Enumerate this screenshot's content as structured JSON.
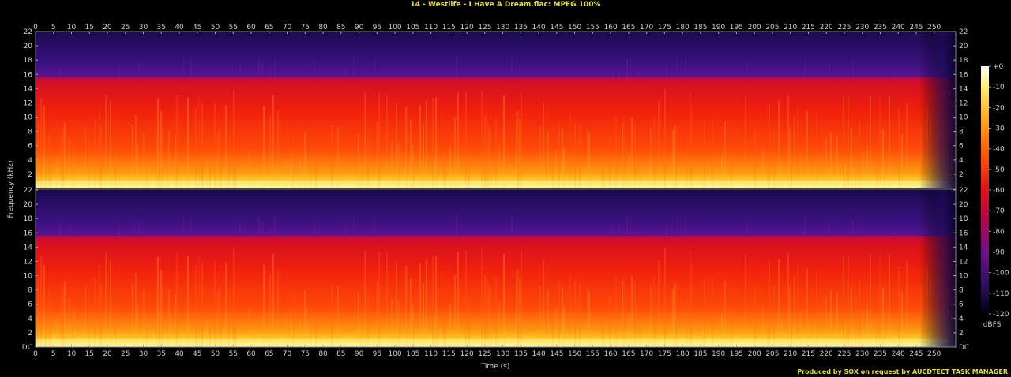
{
  "chart_data": {
    "type": "heatmap",
    "title": "14 - Westlife - I Have A Dream.flac: MPEG 100%",
    "xlabel": "Time (s)",
    "ylabel": "Frequency (kHz)",
    "x_ticks": [
      0,
      5,
      10,
      15,
      20,
      25,
      30,
      35,
      40,
      45,
      50,
      55,
      60,
      65,
      70,
      75,
      80,
      85,
      90,
      95,
      100,
      105,
      110,
      115,
      120,
      125,
      130,
      135,
      140,
      145,
      150,
      155,
      160,
      165,
      170,
      175,
      180,
      185,
      190,
      195,
      200,
      205,
      210,
      215,
      220,
      225,
      230,
      235,
      240,
      245,
      250
    ],
    "xlim": [
      0,
      256
    ],
    "y_ticks": [
      "DC",
      "2",
      "4",
      "6",
      "8",
      "10",
      "12",
      "14",
      "16",
      "18",
      "20",
      "22"
    ],
    "ylim": [
      0,
      22
    ],
    "channels": 2,
    "lowpass_cutoff_khz": 15.5,
    "fade_out_start_s": 248,
    "colorbar": {
      "label": "dBFS",
      "ticks": [
        "+0",
        "-10",
        "-20",
        "-30",
        "-40",
        "-50",
        "-60",
        "-70",
        "-80",
        "-90",
        "-100",
        "-110",
        "-120"
      ],
      "range": [
        -120,
        0
      ]
    },
    "credit": "Produced by SOX on request by AUCDTECT TASK MANAGER"
  }
}
